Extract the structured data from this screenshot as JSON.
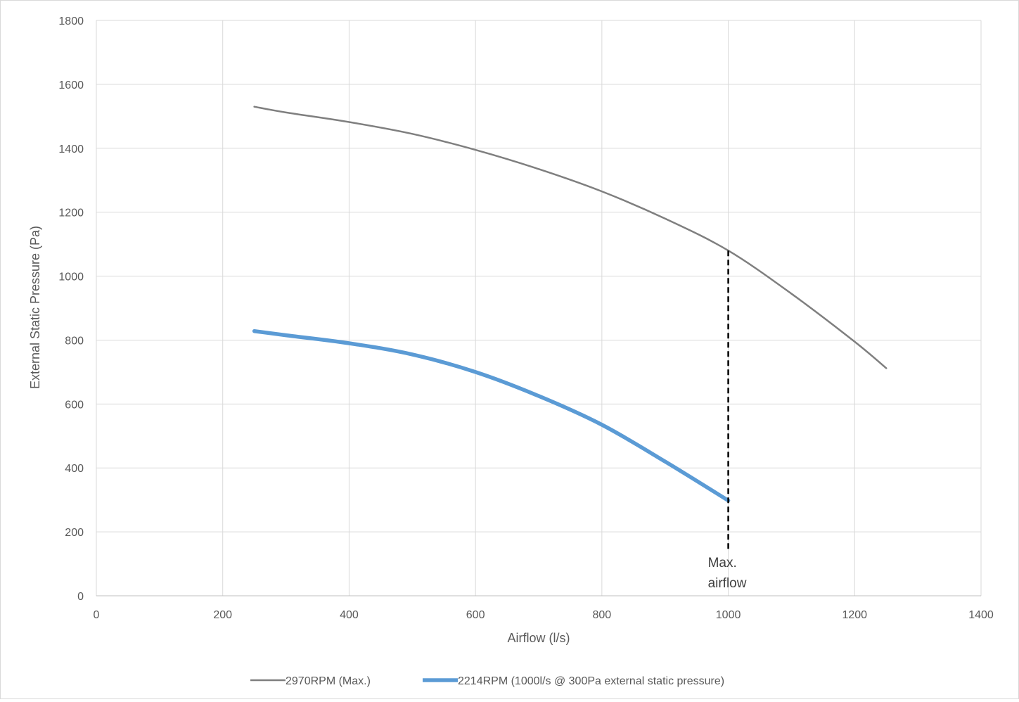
{
  "chart_data": {
    "type": "line",
    "title": "",
    "xlabel": "Airflow (l/s)",
    "ylabel": "External Static Pressure (Pa)",
    "xlim": [
      0,
      1400
    ],
    "ylim": [
      0,
      1800
    ],
    "x_ticks": [
      0,
      200,
      400,
      600,
      800,
      1000,
      1200,
      1400
    ],
    "y_ticks": [
      0,
      200,
      400,
      600,
      800,
      1000,
      1200,
      1400,
      1600,
      1800
    ],
    "grid": true,
    "legend_position": "bottom",
    "series": [
      {
        "name": "2970RPM (Max.)",
        "color": "#7f7f7f",
        "x": [
          250,
          300,
          400,
          500,
          600,
          700,
          800,
          900,
          1000,
          1100,
          1200,
          1250
        ],
        "y": [
          1530,
          1512,
          1482,
          1445,
          1395,
          1335,
          1265,
          1180,
          1080,
          945,
          795,
          712
        ]
      },
      {
        "name": "2214RPM (1000l/s @ 300Pa external static pressure)",
        "color": "#5b9bd5",
        "x": [
          250,
          300,
          400,
          500,
          600,
          700,
          800,
          900,
          1000
        ],
        "y": [
          828,
          815,
          790,
          755,
          700,
          625,
          535,
          420,
          298
        ]
      }
    ],
    "annotations": [
      {
        "line1": "Max.",
        "line2": "airflow",
        "x": 1000,
        "y_from": 0,
        "y_to": 1080,
        "style": "dashed"
      }
    ]
  }
}
